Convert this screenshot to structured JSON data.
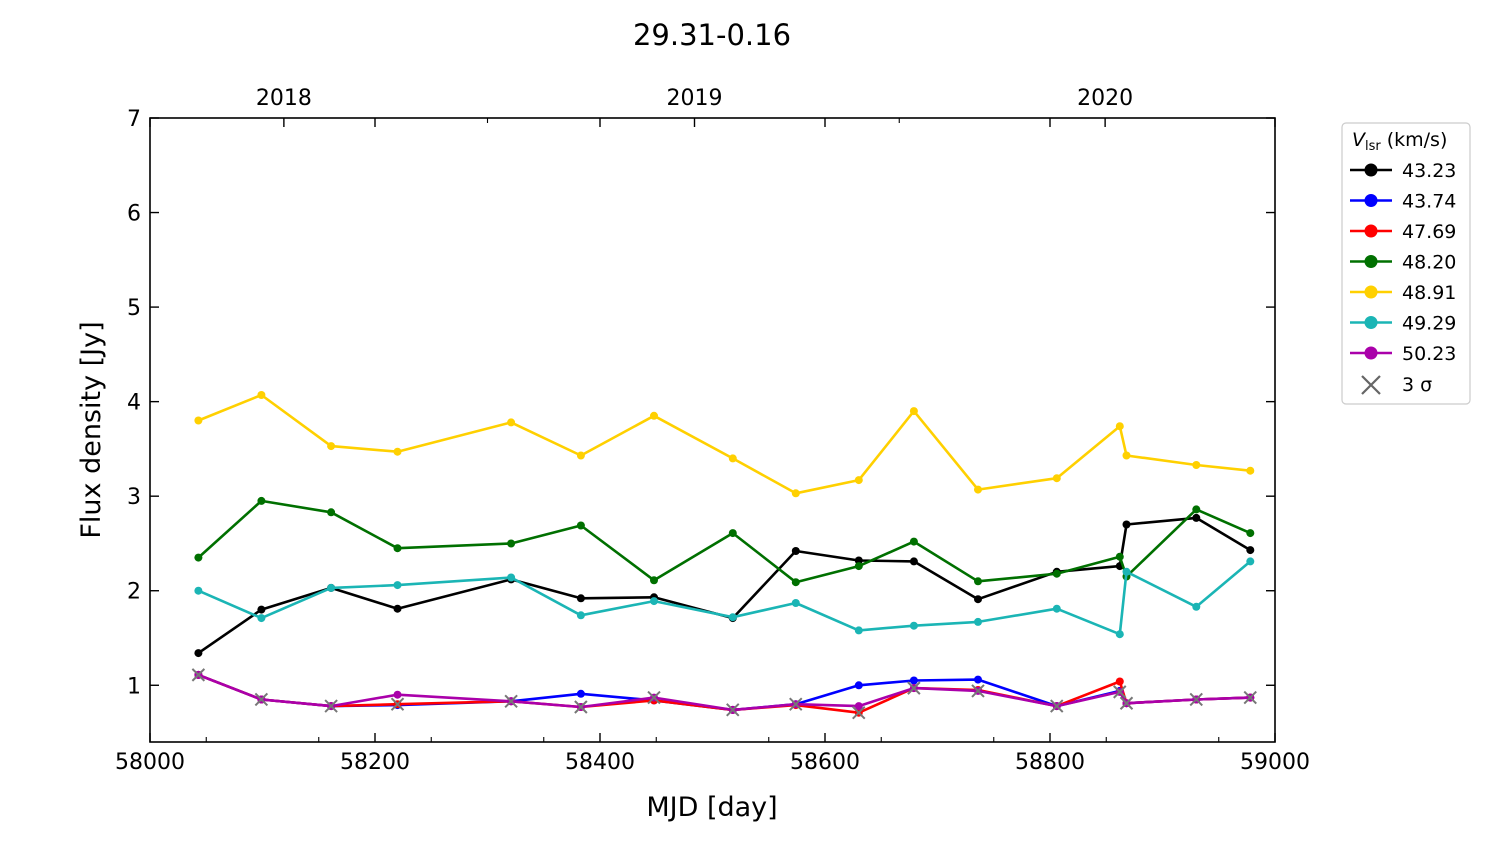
{
  "chart_data": {
    "type": "line",
    "title": "29.31-0.16",
    "xlabel": "MJD [day]",
    "ylabel": "Flux density [Jy]",
    "xlim": [
      58000,
      59000
    ],
    "ylim": [
      0.4,
      7
    ],
    "x_ticks": [
      "58000",
      "58200",
      "58400",
      "58600",
      "58800",
      "59000"
    ],
    "y_ticks": [
      "1",
      "2",
      "3",
      "4",
      "5",
      "6",
      "7"
    ],
    "top_axis": {
      "labels": [
        {
          "label": "2018",
          "mjd": 58119
        },
        {
          "label": "2019",
          "mjd": 58484
        },
        {
          "label": "2020",
          "mjd": 58849
        }
      ],
      "minor_ticks_mjd": [
        58300,
        58666,
        59031
      ]
    },
    "grid": false,
    "legend": {
      "position": "outside-right",
      "title_main": "V",
      "title_sub": "lsr",
      "title_unit": "(km/s)",
      "sigma_label": "3 σ"
    },
    "x": [
      58043,
      58099,
      58161,
      58220,
      58321,
      58383,
      58448,
      58518,
      58574,
      58630,
      58679,
      58736,
      58806,
      58862,
      58868,
      58930,
      58978
    ],
    "series": [
      {
        "name": "43.23",
        "color": "#000000",
        "values": [
          1.34,
          1.8,
          2.03,
          1.81,
          2.12,
          1.92,
          1.93,
          1.71,
          2.42,
          2.32,
          2.31,
          1.91,
          2.2,
          2.26,
          2.7,
          2.77,
          2.43
        ]
      },
      {
        "name": "43.74",
        "color": "#0000ff",
        "values": [
          1.11,
          0.85,
          0.78,
          0.79,
          0.83,
          0.91,
          0.84,
          0.74,
          0.8,
          1.0,
          1.05,
          1.06,
          0.78,
          0.94,
          0.81,
          0.85,
          0.87
        ]
      },
      {
        "name": "47.69",
        "color": "#ff0000",
        "values": [
          1.11,
          0.85,
          0.78,
          0.8,
          0.83,
          0.77,
          0.84,
          0.74,
          0.79,
          0.71,
          0.97,
          0.95,
          0.78,
          1.04,
          0.81,
          0.85,
          0.87
        ]
      },
      {
        "name": "48.20",
        "color": "#007000",
        "values": [
          2.35,
          2.95,
          2.83,
          2.45,
          2.5,
          2.69,
          2.11,
          2.61,
          2.09,
          2.26,
          2.52,
          2.1,
          2.18,
          2.36,
          2.15,
          2.86,
          2.61
        ]
      },
      {
        "name": "48.91",
        "color": "#ffd000",
        "values": [
          3.8,
          4.07,
          3.53,
          3.47,
          3.78,
          3.43,
          3.85,
          3.4,
          3.03,
          3.17,
          3.9,
          3.07,
          3.19,
          3.74,
          3.43,
          3.33,
          3.27
        ]
      },
      {
        "name": "49.29",
        "color": "#1bb5b5",
        "values": [
          2.0,
          1.71,
          2.03,
          2.06,
          2.14,
          1.74,
          1.89,
          1.72,
          1.87,
          1.58,
          1.63,
          1.67,
          1.81,
          1.54,
          2.2,
          1.83,
          2.31
        ]
      },
      {
        "name": "50.23",
        "color": "#aa00aa",
        "values": [
          1.11,
          0.85,
          0.78,
          0.9,
          0.83,
          0.77,
          0.87,
          0.74,
          0.8,
          0.78,
          0.97,
          0.94,
          0.78,
          0.93,
          0.81,
          0.85,
          0.87
        ]
      }
    ],
    "upper_limit_marker": "x",
    "upper_limit_points": [
      {
        "series": "47.69",
        "x": 58220,
        "y": 0.8
      },
      {
        "series": "47.69",
        "x": 58630,
        "y": 0.71
      },
      {
        "series": "50.23",
        "x": 58043,
        "y": 1.11
      },
      {
        "series": "50.23",
        "x": 58099,
        "y": 0.85
      },
      {
        "series": "50.23",
        "x": 58161,
        "y": 0.78
      },
      {
        "series": "50.23",
        "x": 58321,
        "y": 0.83
      },
      {
        "series": "50.23",
        "x": 58383,
        "y": 0.77
      },
      {
        "series": "50.23",
        "x": 58448,
        "y": 0.87
      },
      {
        "series": "50.23",
        "x": 58518,
        "y": 0.74
      },
      {
        "series": "50.23",
        "x": 58574,
        "y": 0.8
      },
      {
        "series": "50.23",
        "x": 58679,
        "y": 0.97
      },
      {
        "series": "50.23",
        "x": 58736,
        "y": 0.94
      },
      {
        "series": "50.23",
        "x": 58806,
        "y": 0.78
      },
      {
        "series": "50.23",
        "x": 58862,
        "y": 0.93
      },
      {
        "series": "50.23",
        "x": 58868,
        "y": 0.81
      },
      {
        "series": "50.23",
        "x": 58930,
        "y": 0.85
      },
      {
        "series": "50.23",
        "x": 58978,
        "y": 0.87
      }
    ]
  }
}
